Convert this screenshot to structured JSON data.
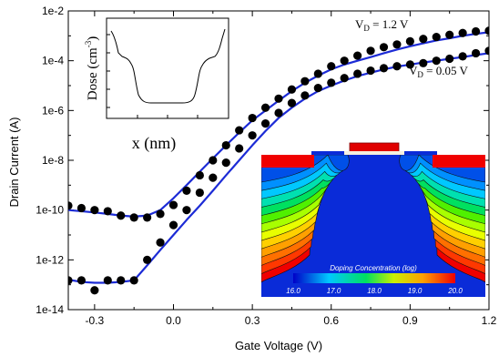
{
  "chart_data": {
    "type": "scatter",
    "xlabel": "Gate Voltage (V)",
    "ylabel": "Drain Current (A)",
    "xlim": [
      -0.4,
      1.2
    ],
    "ylim": [
      1e-14,
      0.01
    ],
    "yscale": "log",
    "x_ticks": [
      "-0.3",
      "0.0",
      "0.3",
      "0.6",
      "0.9",
      "1.2"
    ],
    "y_ticks": [
      "1e-14",
      "1e-12",
      "1e-10",
      "1e-8",
      "1e-6",
      "1e-4",
      "1e-2"
    ],
    "annotations": {
      "vd_high": {
        "prefix": "V",
        "sub": "D",
        "suffix": " = 1.2 V"
      },
      "vd_low": {
        "prefix": "V",
        "sub": "D",
        "suffix": " = 0.05 V"
      }
    },
    "colors": {
      "fit_line": "#1c2bd6",
      "points": "#000000"
    },
    "series": [
      {
        "kind": "points",
        "x": [
          -0.4,
          -0.35,
          -0.3,
          -0.25,
          -0.2,
          -0.15,
          -0.1,
          -0.05,
          0.0,
          0.05,
          0.1,
          0.15,
          0.2,
          0.25,
          0.3,
          0.35,
          0.4,
          0.45,
          0.5,
          0.55,
          0.6,
          0.65,
          0.7,
          0.75,
          0.8,
          0.85,
          0.9,
          0.95,
          1.0,
          1.05,
          1.1,
          1.15,
          1.2
        ],
        "y": [
          1.5e-10,
          1.2e-10,
          1e-10,
          9e-11,
          6e-11,
          5e-11,
          5e-11,
          7e-11,
          1.6e-10,
          6e-10,
          2.5e-09,
          1e-08,
          4e-08,
          1.6e-07,
          5e-07,
          1.3e-06,
          3e-06,
          7e-06,
          1.5e-05,
          3e-05,
          6e-05,
          0.0001,
          0.00016,
          0.00025,
          0.00035,
          0.00045,
          0.0006,
          0.00075,
          0.0009,
          0.0011,
          0.0013,
          0.0015,
          0.0016
        ]
      },
      {
        "kind": "line",
        "x": [
          -0.4,
          -0.35,
          -0.3,
          -0.25,
          -0.2,
          -0.15,
          -0.1,
          -0.05,
          0.0,
          0.05,
          0.1,
          0.15,
          0.2,
          0.25,
          0.3,
          0.35,
          0.4,
          0.45,
          0.5,
          0.55,
          0.6,
          0.65,
          0.7,
          0.75,
          0.8,
          0.85,
          0.9,
          0.95,
          1.0,
          1.05,
          1.1,
          1.15,
          1.2
        ],
        "y": [
          1e-10,
          9e-11,
          8e-11,
          7e-11,
          6e-11,
          5.5e-11,
          6e-11,
          1e-10,
          3e-10,
          1e-09,
          3.5e-09,
          1.2e-08,
          4e-08,
          1.3e-07,
          4e-07,
          1e-06,
          2.5e-06,
          6e-06,
          1.3e-05,
          2.5e-05,
          4.5e-05,
          7e-05,
          0.0001,
          0.00014,
          0.0002,
          0.00028,
          0.00038,
          0.0005,
          0.00065,
          0.0008,
          0.001,
          0.0012,
          0.0014
        ]
      },
      {
        "kind": "points",
        "x": [
          -0.4,
          -0.35,
          -0.3,
          -0.25,
          -0.2,
          -0.15,
          -0.1,
          -0.05,
          0.0,
          0.05,
          0.1,
          0.15,
          0.2,
          0.25,
          0.3,
          0.35,
          0.4,
          0.45,
          0.5,
          0.55,
          0.6,
          0.65,
          0.7,
          0.75,
          0.8,
          0.85,
          0.9,
          0.95,
          1.0,
          1.05,
          1.1,
          1.15,
          1.2
        ],
        "y": [
          1.5e-13,
          1.5e-13,
          6e-14,
          1.5e-13,
          1.5e-13,
          1.5e-13,
          1e-12,
          5e-12,
          2.5e-11,
          1e-10,
          5e-10,
          2e-09,
          8e-09,
          3e-08,
          1e-07,
          3e-07,
          8e-07,
          2e-06,
          4e-06,
          8e-06,
          1.3e-05,
          2e-05,
          3e-05,
          4e-05,
          5e-05,
          6e-05,
          7e-05,
          8e-05,
          0.0001,
          0.00012,
          0.00015,
          0.0002,
          0.00025
        ]
      },
      {
        "kind": "line",
        "x": [
          -0.4,
          -0.35,
          -0.3,
          -0.25,
          -0.2,
          -0.15,
          -0.1,
          -0.05,
          0.0,
          0.05,
          0.1,
          0.15,
          0.2,
          0.25,
          0.3,
          0.35,
          0.4,
          0.45,
          0.5,
          0.55,
          0.6,
          0.65,
          0.7,
          0.75,
          0.8,
          0.85,
          0.9,
          0.95,
          1.0,
          1.05,
          1.1,
          1.15,
          1.2
        ],
        "y": [
          1.6e-13,
          1.3e-13,
          1.2e-13,
          1.2e-13,
          1.3e-13,
          1.5e-13,
          6e-13,
          2.5e-12,
          1e-11,
          4e-11,
          1.5e-10,
          6e-10,
          2.5e-09,
          1e-08,
          4e-08,
          1.5e-07,
          5e-07,
          1.3e-06,
          3e-06,
          6e-06,
          1e-05,
          1.6e-05,
          2.4e-05,
          3.3e-05,
          4.5e-05,
          5.8e-05,
          7e-05,
          8.5e-05,
          0.0001,
          0.00012,
          0.00014,
          0.00017,
          0.0002
        ]
      }
    ]
  },
  "inset_dose": {
    "ylabel": "Dose (cm",
    "ylabel_sup": "-3",
    "ylabel_tail": ")",
    "xlabel": "x (nm)"
  },
  "inset_doping": {
    "title": "Doping Concentration (log)",
    "ticks": [
      "16.0",
      "17.0",
      "18.0",
      "19.0",
      "20.0"
    ]
  }
}
